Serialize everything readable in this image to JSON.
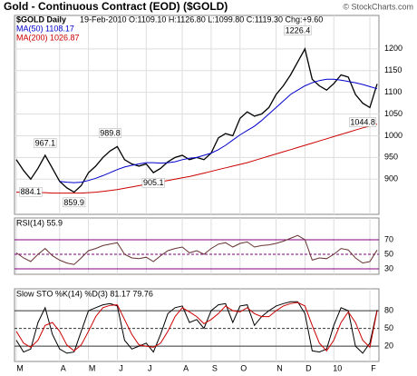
{
  "title": "Gold - Continuous Contract (EOD) ($GOLD)",
  "header": "19-Feb-2010 O:1109.10 H:1126.80 L:1099.80 C:1119.30 Chg:+9.60",
  "copyright": "© StockCharts.com",
  "chart_data": [
    {
      "type": "line",
      "ylim": [
        819,
        1277
      ],
      "yticks": [
        900,
        950,
        1000,
        1050,
        1100,
        1150,
        1200
      ],
      "grid": true,
      "annotations": [
        "967.1",
        "884.1",
        "859.9",
        "989.8",
        "905.1",
        "1226.4",
        "1044.8"
      ],
      "series": [
        {
          "name": "$GOLD Daily",
          "color": "#000000",
          "values": [
            945,
            920,
            900,
            925,
            955,
            925,
            895,
            880,
            870,
            885,
            915,
            930,
            950,
            965,
            975,
            945,
            935,
            930,
            935,
            915,
            925,
            940,
            950,
            955,
            945,
            950,
            945,
            960,
            995,
            1005,
            1000,
            1040,
            1055,
            1045,
            1050,
            1065,
            1095,
            1115,
            1140,
            1170,
            1200,
            1130,
            1115,
            1105,
            1120,
            1140,
            1135,
            1095,
            1075,
            1065,
            1119.3
          ]
        },
        {
          "name": "MA(50) 1108.17",
          "color": "#0000cc",
          "values": [
            null,
            null,
            null,
            null,
            null,
            null,
            895,
            893,
            892,
            893,
            897,
            902,
            908,
            915,
            922,
            928,
            932,
            935,
            938,
            938,
            937,
            938,
            940,
            945,
            948,
            950,
            955,
            960,
            968,
            978,
            990,
            1002,
            1012,
            1022,
            1035,
            1050,
            1065,
            1080,
            1095,
            1105,
            1115,
            1122,
            1127,
            1130,
            1130,
            1128,
            1125,
            1122,
            1118,
            1113,
            1108.17
          ]
        },
        {
          "name": "MA(200) 1026.87",
          "color": "#cc0000",
          "values": [
            870,
            870,
            870,
            869,
            869,
            868,
            868,
            868,
            868,
            868,
            869,
            870,
            872,
            874,
            876,
            879,
            882,
            885,
            888,
            891,
            894,
            897,
            900,
            903,
            906,
            910,
            914,
            918,
            922,
            926,
            930,
            934,
            938,
            943,
            948,
            953,
            958,
            963,
            968,
            973,
            978,
            983,
            988,
            993,
            998,
            1003,
            1008,
            1013,
            1018,
            1022,
            1026.87
          ]
        }
      ]
    },
    {
      "type": "line",
      "label": "RSI(14) 55.9",
      "ylim": [
        22.5,
        100
      ],
      "yticks": [
        30,
        50,
        70
      ],
      "grid": true,
      "grid_color": "#800080",
      "series": [
        {
          "color": "#663333",
          "values": [
            52,
            45,
            40,
            50,
            58,
            48,
            42,
            38,
            36,
            45,
            55,
            58,
            62,
            64,
            66,
            50,
            45,
            44,
            46,
            40,
            48,
            55,
            58,
            60,
            52,
            55,
            50,
            58,
            64,
            66,
            60,
            65,
            67,
            60,
            62,
            63,
            65,
            68,
            72,
            76,
            70,
            42,
            45,
            44,
            50,
            58,
            56,
            45,
            38,
            40,
            55.9
          ]
        }
      ]
    },
    {
      "type": "line",
      "label": "Slow STO %K(14) %D(3) 81.17 79.76",
      "ylim": [
        -6,
        117
      ],
      "yticks": [
        20,
        50,
        80
      ],
      "grid": true,
      "grid_color": "#333333",
      "categories": [
        "M",
        null,
        null,
        null,
        null,
        null,
        "A",
        null,
        null,
        null,
        "M",
        null,
        null,
        null,
        "J",
        null,
        null,
        null,
        "J",
        null,
        null,
        null,
        null,
        "A",
        null,
        null,
        null,
        "S",
        null,
        null,
        null,
        "O",
        null,
        null,
        null,
        null,
        "N",
        null,
        null,
        null,
        "D",
        null,
        null,
        null,
        "10",
        null,
        null,
        null,
        null,
        "F",
        null
      ],
      "series": [
        {
          "color": "#000000",
          "values": [
            30,
            10,
            15,
            60,
            85,
            40,
            15,
            8,
            10,
            45,
            80,
            85,
            90,
            92,
            88,
            30,
            15,
            20,
            25,
            10,
            40,
            75,
            85,
            88,
            60,
            65,
            50,
            80,
            90,
            92,
            60,
            88,
            90,
            55,
            70,
            80,
            88,
            92,
            95,
            95,
            75,
            12,
            10,
            15,
            55,
            85,
            80,
            20,
            8,
            25,
            81.17
          ]
        },
        {
          "color": "#cc0000",
          "values": [
            45,
            25,
            18,
            30,
            55,
            60,
            45,
            22,
            12,
            22,
            45,
            70,
            85,
            89,
            90,
            65,
            40,
            22,
            20,
            18,
            25,
            45,
            70,
            85,
            78,
            70,
            58,
            65,
            75,
            88,
            80,
            78,
            85,
            75,
            70,
            70,
            80,
            88,
            92,
            94,
            88,
            55,
            25,
            12,
            30,
            60,
            78,
            60,
            30,
            18,
            79.76
          ]
        }
      ]
    }
  ]
}
